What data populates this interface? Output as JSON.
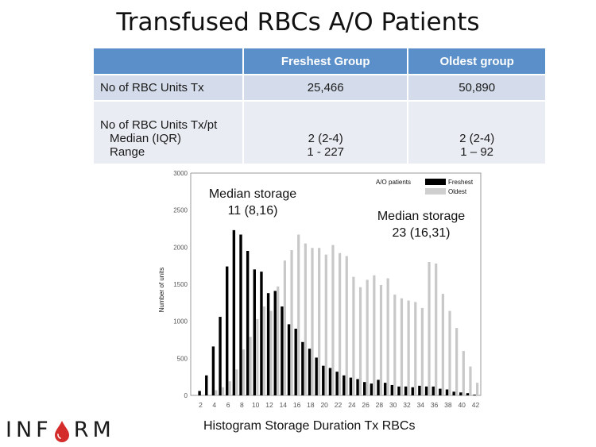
{
  "slide": {
    "title": "Transfused RBCs A/O Patients",
    "caption": "Histogram Storage Duration Tx RBCs",
    "logo": {
      "text_before": "INF",
      "text_after": "RM",
      "icon": "blood-drop-icon",
      "icon_color": "#d42b2b"
    }
  },
  "table": {
    "header": {
      "blank": "",
      "col1": "Freshest Group",
      "col2": "Oldest group"
    },
    "header_color": "#5b8fc9",
    "rows": [
      {
        "label": "No of RBC Units Tx",
        "col1": "25,466",
        "col2": "50,890"
      },
      {
        "label": "No of RBC Units Tx/pt",
        "sub": [
          {
            "label": "Median (IQR)",
            "col1": "2 (2-4)",
            "col2": "2 (2-4)"
          },
          {
            "label": "Range",
            "col1": "1 - 227",
            "col2": "1 – 92"
          }
        ]
      }
    ]
  },
  "chart_data": {
    "type": "bar",
    "title": "",
    "xlabel": "",
    "ylabel": "Number of units",
    "ylim": [
      0,
      3000
    ],
    "yticks": [
      0,
      500,
      1000,
      1500,
      2000,
      2500,
      3000
    ],
    "xticks": [
      2,
      4,
      6,
      8,
      10,
      12,
      14,
      16,
      18,
      20,
      22,
      24,
      26,
      28,
      30,
      32,
      34,
      36,
      38,
      40,
      42
    ],
    "grid": false,
    "legend": {
      "title": "A/O patients",
      "position": "top-right",
      "entries": [
        "Freshest",
        "Oldest"
      ]
    },
    "x": [
      2,
      3,
      4,
      5,
      6,
      7,
      8,
      9,
      10,
      11,
      12,
      13,
      14,
      15,
      16,
      17,
      18,
      19,
      20,
      21,
      22,
      23,
      24,
      25,
      26,
      27,
      28,
      29,
      30,
      31,
      32,
      33,
      34,
      35,
      36,
      37,
      38,
      39,
      40,
      41,
      42
    ],
    "series": [
      {
        "name": "Freshest",
        "color": "#000000",
        "values": [
          60,
          270,
          660,
          1060,
          1740,
          2230,
          2170,
          1950,
          1700,
          1670,
          1380,
          1410,
          1200,
          960,
          900,
          720,
          630,
          510,
          400,
          370,
          320,
          270,
          240,
          220,
          180,
          160,
          210,
          170,
          140,
          120,
          120,
          110,
          130,
          120,
          120,
          90,
          80,
          50,
          40,
          30,
          10
        ]
      },
      {
        "name": "Oldest",
        "color": "#c8c8c8",
        "values": [
          0,
          10,
          70,
          110,
          190,
          350,
          620,
          790,
          1030,
          1200,
          1140,
          1470,
          1820,
          1960,
          2170,
          2050,
          1990,
          1990,
          1900,
          2030,
          1920,
          1880,
          1600,
          1460,
          1560,
          1620,
          1490,
          1580,
          1360,
          1310,
          1280,
          1260,
          1180,
          1800,
          1780,
          1370,
          1140,
          910,
          600,
          390,
          170
        ]
      }
    ],
    "annotations": [
      {
        "line1": "Median storage",
        "line2": "11 (8,16)",
        "series": "Freshest"
      },
      {
        "line1": "Median storage",
        "line2": "23 (16,31)",
        "series": "Oldest"
      }
    ]
  }
}
